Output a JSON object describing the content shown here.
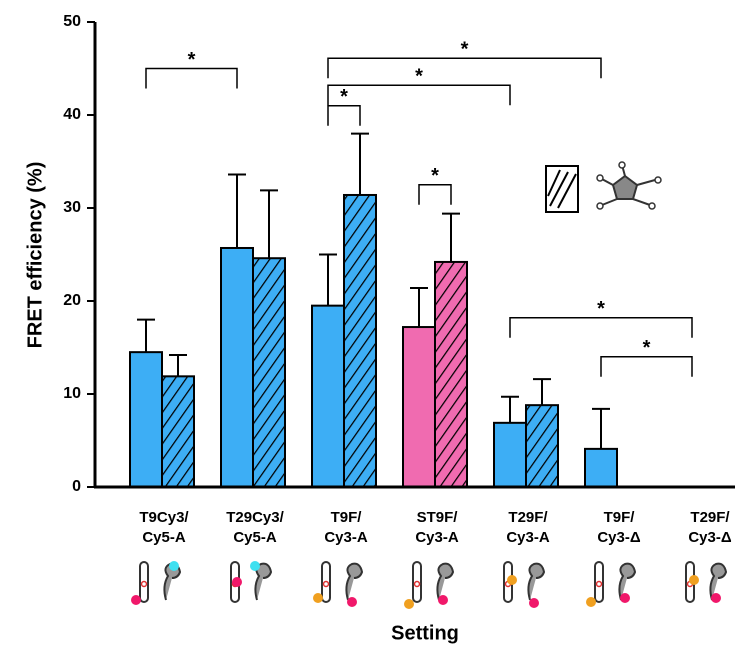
{
  "chart_data": {
    "type": "bar",
    "y_label": "FRET efficiency (%)",
    "x_label": "Setting",
    "categories": [
      [
        "T9Cy3/",
        "Cy5-A"
      ],
      [
        "T29Cy3/",
        "Cy5-A"
      ],
      [
        "T9F/",
        "Cy3-A"
      ],
      [
        "ST9F/",
        "Cy3-A"
      ],
      [
        "T29F/",
        "Cy3-A"
      ],
      [
        "T9F/",
        "Cy3-Δ"
      ],
      [
        "T29F/",
        "Cy3-Δ"
      ]
    ],
    "series": [
      {
        "colors": [
          "#3daef5",
          "#3daef5",
          "#3daef5",
          "#f06bb0",
          "#3daef5",
          "#3daef5",
          "#3daef5"
        ],
        "hatch": false,
        "values": [
          14.5,
          25.7,
          19.5,
          17.2,
          6.9,
          4.1,
          null
        ],
        "errors": [
          3.5,
          7.9,
          5.5,
          4.2,
          2.8,
          4.3,
          null
        ]
      },
      {
        "colors": [
          "#3daef5",
          "#3daef5",
          "#3daef5",
          "#f06bb0",
          "#3daef5",
          "#3daef5",
          "#3daef5"
        ],
        "hatch": true,
        "values": [
          11.9,
          24.6,
          31.4,
          24.2,
          8.8,
          null,
          null
        ],
        "errors": [
          2.3,
          7.3,
          6.6,
          5.2,
          2.8,
          null,
          null
        ]
      }
    ],
    "ylim": [
      0,
      50
    ],
    "yticks": [
      0,
      10,
      20,
      30,
      40,
      50
    ],
    "grid": false,
    "significance": [
      {
        "label": "*",
        "from": [
          0,
          0
        ],
        "to": [
          1,
          0
        ],
        "y": 45
      },
      {
        "label": "*",
        "from": [
          2,
          0
        ],
        "to": [
          5,
          0
        ],
        "y": 46.1
      },
      {
        "label": "*",
        "from": [
          2,
          0
        ],
        "to": [
          4,
          0
        ],
        "y": 43.2
      },
      {
        "label": "*",
        "from": [
          2,
          0
        ],
        "to": [
          2,
          1
        ],
        "y": 41
      },
      {
        "label": "*",
        "from": [
          3,
          0
        ],
        "to": [
          3,
          1
        ],
        "y": 32.5
      },
      {
        "label": "*",
        "from": [
          4,
          0
        ],
        "to": [
          6,
          0
        ],
        "y": 18.2
      },
      {
        "label": "*",
        "from": [
          5,
          0
        ],
        "to": [
          6,
          0
        ],
        "y": 14
      }
    ]
  }
}
